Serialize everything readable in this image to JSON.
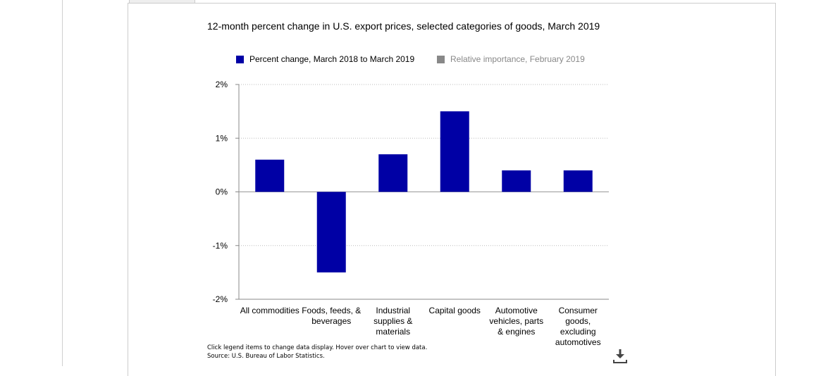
{
  "title": "12-month percent change in U.S. export prices, selected categories of goods, March 2019",
  "legend": {
    "percent_change": {
      "label": "Percent change, March 2018 to March 2019",
      "color": "#0000a5"
    },
    "relative_importance": {
      "label": "Relative importance, February 2019",
      "color": "#888888"
    }
  },
  "chart_data": {
    "type": "bar",
    "categories": [
      [
        "All commodities"
      ],
      [
        "Foods, feeds, &",
        "beverages"
      ],
      [
        "Industrial",
        "supplies &",
        "materials"
      ],
      [
        "Capital goods"
      ],
      [
        "Automotive",
        "vehicles, parts",
        "& engines"
      ],
      [
        "Consumer",
        "goods,",
        "excluding",
        "automotives"
      ]
    ],
    "series": [
      {
        "name": "Percent change, March 2018 to March 2019",
        "values": [
          0.6,
          -1.5,
          0.7,
          1.5,
          0.4,
          0.4
        ]
      }
    ],
    "ylim": [
      -2,
      2
    ],
    "yticks": [
      2,
      1,
      0,
      -1,
      -2
    ],
    "ytick_labels": [
      "2%",
      "1%",
      "0%",
      "-1%",
      "-2%"
    ],
    "grid": true
  },
  "notes": {
    "line1": "Click legend items to change data display. Hover over chart to view data.",
    "line2": "Source: U.S. Bureau of Labor Statistics."
  },
  "icons": {
    "download": "download-icon"
  }
}
